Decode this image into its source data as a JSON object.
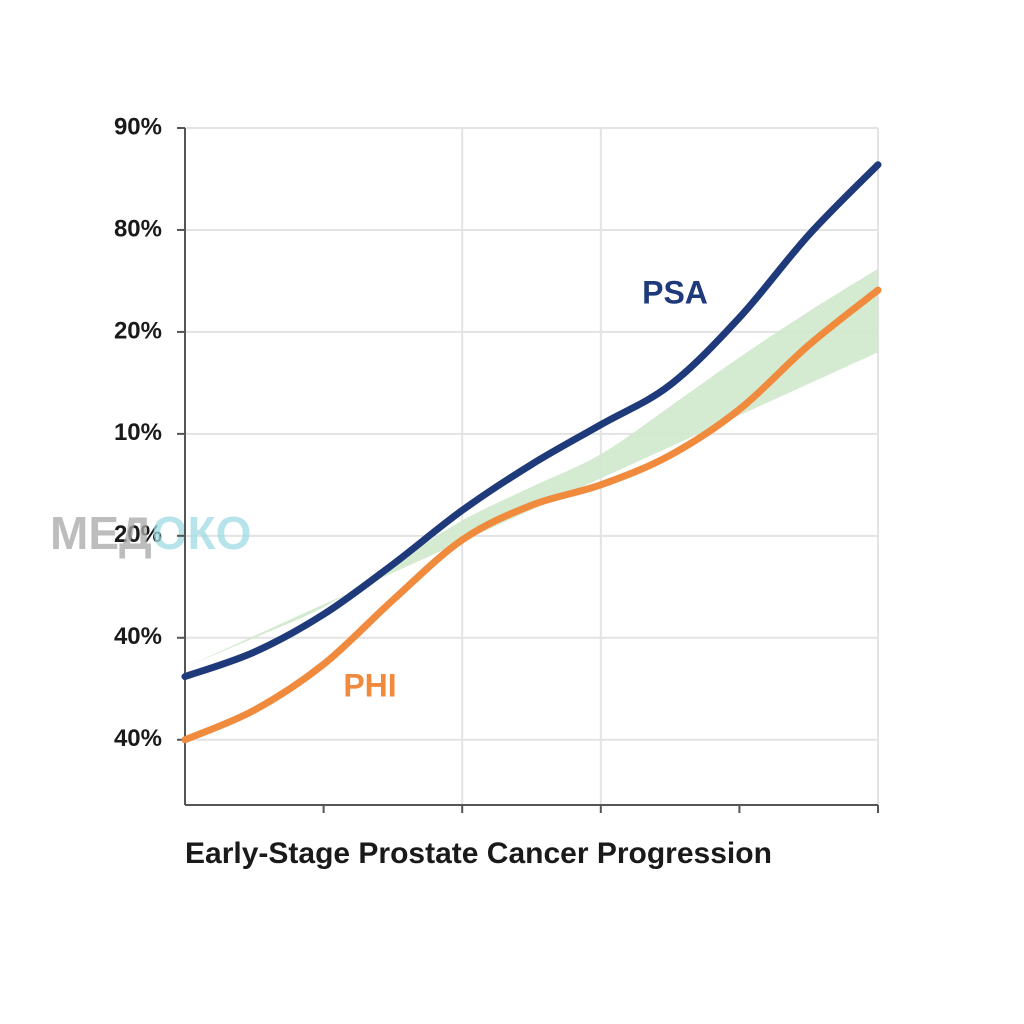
{
  "chart_data": {
    "type": "line",
    "title": "Early-Stage Prostate Cancer Progression",
    "watermark": [
      "МЕД",
      "ОКО"
    ],
    "x": [
      0,
      1,
      2,
      3,
      4,
      5,
      6,
      7,
      8,
      9,
      10
    ],
    "xlim": [
      0,
      10
    ],
    "xticks": [
      2,
      4,
      6,
      8,
      10
    ],
    "xgrid": [
      4,
      6,
      10
    ],
    "ylim": [
      -0.64,
      6
    ],
    "yticks": [
      {
        "value": 6,
        "label": "90%"
      },
      {
        "value": 5,
        "label": "80%"
      },
      {
        "value": 4,
        "label": "20%"
      },
      {
        "value": 3,
        "label": "10%"
      },
      {
        "value": 2,
        "label": "20%"
      },
      {
        "value": 1,
        "label": "40%"
      },
      {
        "value": 0,
        "label": "40%"
      }
    ],
    "grid": true,
    "band": {
      "color": "#cfe8cc",
      "upper": [
        0.71,
        1.0,
        1.3,
        1.72,
        2.15,
        2.48,
        2.8,
        3.27,
        3.75,
        4.2,
        4.62
      ],
      "lower": [
        0.39,
        0.67,
        0.95,
        1.35,
        1.75,
        2.1,
        2.45,
        2.75,
        3.05,
        3.42,
        3.8
      ]
    },
    "series": [
      {
        "name": "PSA",
        "color": "#1f3a7a",
        "values": [
          0.62,
          0.86,
          1.23,
          1.72,
          2.25,
          2.7,
          3.09,
          3.48,
          4.14,
          4.95,
          5.64
        ]
      },
      {
        "name": "PHI",
        "color": "#f08a3c",
        "values": [
          0,
          0.29,
          0.74,
          1.37,
          1.96,
          2.3,
          2.5,
          2.79,
          3.24,
          3.87,
          4.41
        ]
      }
    ]
  }
}
